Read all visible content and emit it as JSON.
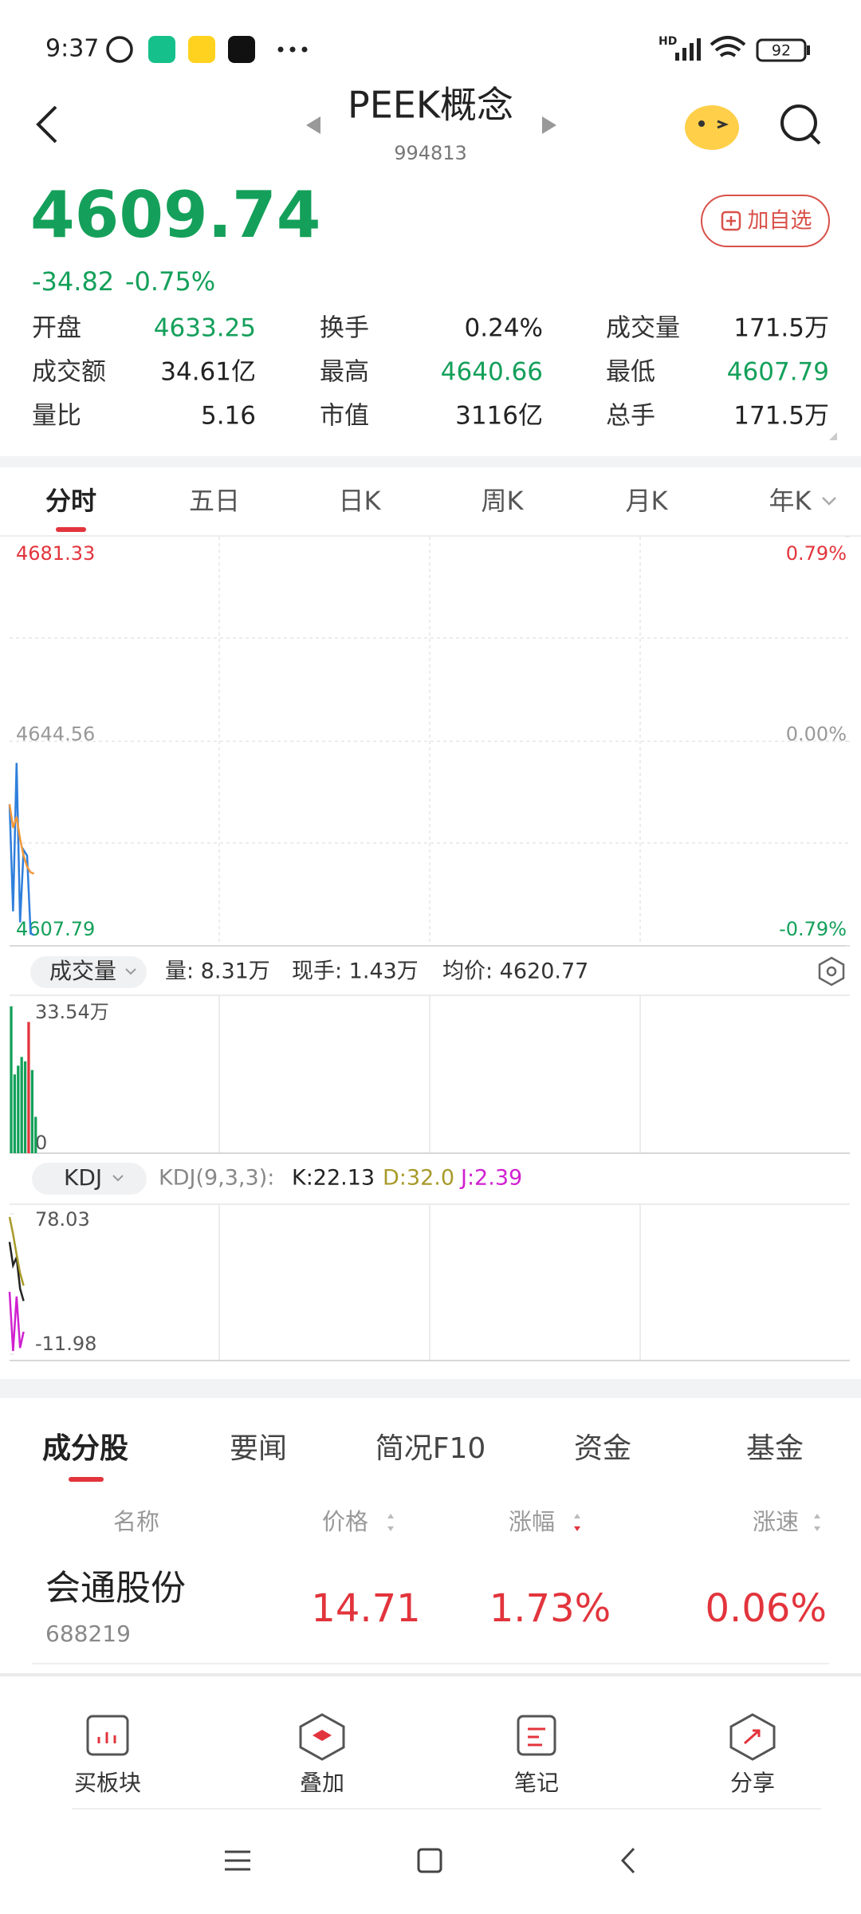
{
  "status_bar": {
    "time": "9:37",
    "network": "HD",
    "battery": "92"
  },
  "header": {
    "title": "PEEK概念",
    "code": "994813",
    "watch_button": "加自选"
  },
  "quote": {
    "price": "4609.74",
    "change": "-34.82",
    "change_pct": "-0.75%"
  },
  "stats": [
    [
      {
        "label": "开盘",
        "value": "4633.25"
      },
      {
        "label": "换手",
        "value": "0.24%"
      },
      {
        "label": "成交量",
        "value": "171.5万"
      }
    ],
    [
      {
        "label": "成交额",
        "value": "34.61亿"
      },
      {
        "label": "最高",
        "value": "4640.66"
      },
      {
        "label": "最低",
        "value": "4607.79"
      }
    ],
    [
      {
        "label": "量比",
        "value": "5.16"
      },
      {
        "label": "市值",
        "value": "3116亿"
      },
      {
        "label": "总手",
        "value": "171.5万"
      }
    ]
  ],
  "period_tabs": [
    "分时",
    "五日",
    "日K",
    "周K",
    "月K",
    "年K"
  ],
  "chart_data": [
    {
      "type": "line",
      "x": [
        0,
        1,
        2,
        3,
        4,
        5,
        6,
        7
      ],
      "xlim": [
        0,
        240
      ],
      "ylim": [
        4607.79,
        4681.33
      ],
      "yticks": [
        4607.79,
        4644.56,
        4681.33
      ],
      "y2lim": [
        -0.79,
        0.79
      ],
      "y2ticks": [
        {
          "value": -0.79,
          "label": "-0.79%"
        },
        {
          "value": 0,
          "label": "0.00%"
        },
        {
          "value": 0.79,
          "label": "0.79%"
        }
      ],
      "series": [
        {
          "color": "#2f7fdc",
          "values": [
            4633.25,
            4614,
            4640.66,
            4612,
            4625,
            4624,
            4610,
            4609.74
          ]
        },
        {
          "color": "#f0983c",
          "values": [
            4633.25,
            4629,
            4631,
            4627,
            4624,
            4622,
            4621,
            4620.77
          ]
        }
      ]
    },
    {
      "type": "bar",
      "x": [
        0,
        1,
        2,
        3,
        4,
        5,
        6,
        7
      ],
      "xlim": [
        0,
        240
      ],
      "ylim": [
        0,
        33.54
      ],
      "yticks": [
        0,
        {
          "value": 33.54,
          "label": "33.54万"
        }
      ],
      "values": [
        33.54,
        18,
        20,
        22,
        21,
        30,
        19,
        8.31
      ],
      "colors": [
        "#14a05a",
        "#14a05a",
        "#14a05a",
        "#14a05a",
        "#14a05a",
        "#e2343c",
        "#14a05a",
        "#14a05a"
      ]
    },
    {
      "type": "line",
      "x": [
        0,
        1,
        2,
        3,
        4
      ],
      "xlim": [
        0,
        240
      ],
      "ylim": [
        -11.98,
        78.03
      ],
      "yticks": [
        -11.98,
        78.03
      ],
      "series": [
        {
          "color": "#222222",
          "values": [
            60,
            45,
            50,
            30,
            22.13
          ]
        },
        {
          "color": "#a89a2a",
          "values": [
            76,
            65,
            52,
            40,
            32.0
          ]
        },
        {
          "color": "#d020d0",
          "values": [
            28,
            -10,
            25,
            -8,
            2.39
          ]
        }
      ]
    }
  ],
  "volume_header": {
    "selector": "成交量",
    "volume": "量: 8.31万",
    "current": "现手: 1.43万",
    "average": "均价: 4620.77"
  },
  "kdj_header": {
    "selector": "KDJ",
    "params": "KDJ(9,3,3):",
    "k": "K:22.13",
    "d": "D:32.0",
    "j": "J:2.39"
  },
  "section_tabs": [
    "成分股",
    "要闻",
    "简况F10",
    "资金",
    "基金"
  ],
  "table": {
    "columns": [
      "名称",
      "价格",
      "涨幅",
      "涨速"
    ],
    "rows": [
      {
        "name": "会通股份",
        "code": "688219",
        "price": "14.71",
        "change": "1.73%",
        "speed": "0.06%"
      }
    ]
  },
  "toolbar": [
    "买板块",
    "叠加",
    "笔记",
    "分享"
  ]
}
